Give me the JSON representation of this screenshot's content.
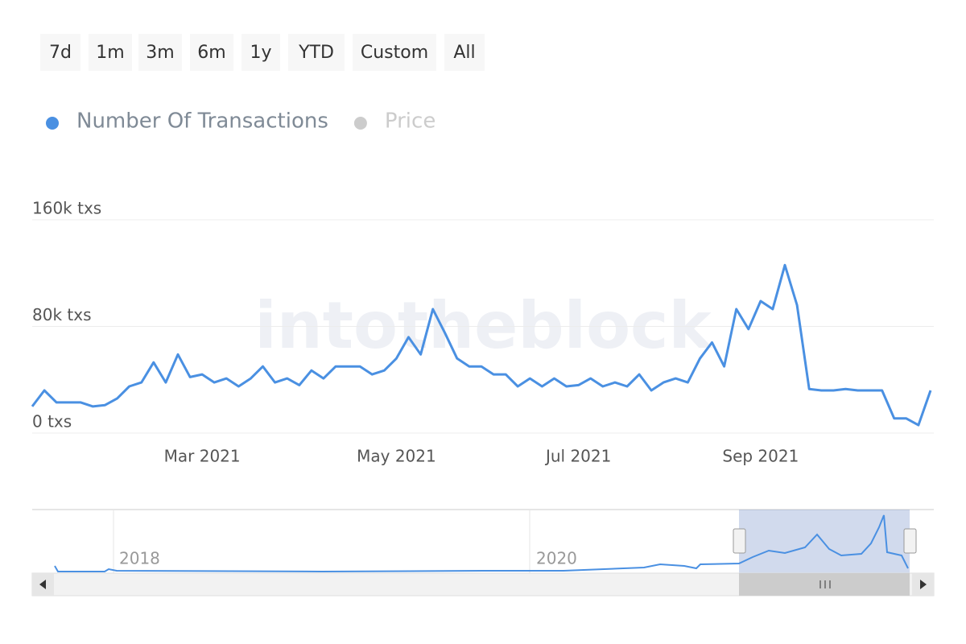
{
  "chart_data": {
    "type": "line",
    "range_buttons": [
      "7d",
      "1m",
      "3m",
      "6m",
      "1y",
      "YTD",
      "Custom",
      "All"
    ],
    "watermark": "intotheblock",
    "categories": [
      null,
      null,
      null,
      null,
      null,
      null,
      null,
      null,
      null,
      null,
      null,
      null,
      null,
      null,
      "Mar 2021",
      null,
      null,
      null,
      null,
      null,
      null,
      null,
      null,
      null,
      null,
      null,
      null,
      null,
      null,
      null,
      "May 2021",
      null,
      null,
      null,
      null,
      null,
      null,
      null,
      null,
      null,
      null,
      null,
      null,
      null,
      null,
      "Jul 2021",
      null,
      null,
      null,
      null,
      null,
      null,
      null,
      null,
      null,
      null,
      null,
      null,
      null,
      null,
      "Sep 2021",
      null,
      null,
      null,
      null,
      null,
      null,
      null,
      null,
      null,
      null,
      null,
      null,
      null,
      null
    ],
    "series": [
      {
        "name": "Number Of Transactions",
        "color": "#4a90e2",
        "values": [
          20000,
          32000,
          23000,
          23000,
          23000,
          20000,
          21000,
          26000,
          35000,
          38000,
          53000,
          38000,
          59000,
          42000,
          44000,
          38000,
          41000,
          35000,
          41000,
          50000,
          38000,
          41000,
          36000,
          47000,
          41000,
          50000,
          50000,
          50000,
          44000,
          47000,
          56000,
          72000,
          59000,
          93000,
          75000,
          56000,
          50000,
          50000,
          44000,
          44000,
          35000,
          41000,
          35000,
          41000,
          35000,
          36000,
          41000,
          35000,
          38000,
          35000,
          44000,
          32000,
          38000,
          41000,
          38000,
          56000,
          68000,
          50000,
          93000,
          78000,
          99000,
          93000,
          126000,
          96000,
          33000,
          32000,
          32000,
          33000,
          32000,
          32000,
          32000,
          11000,
          11000,
          6000,
          32000
        ]
      },
      {
        "name": "Price",
        "color": "#cccccc",
        "visible": false
      }
    ],
    "ylim": [
      0,
      160000
    ],
    "yticks": [
      {
        "value": 0,
        "label": "0 txs"
      },
      {
        "value": 80000,
        "label": "80k txs"
      },
      {
        "value": 160000,
        "label": "160k txs"
      }
    ],
    "grid": true,
    "navigator_labels": [
      "2018",
      "2020"
    ]
  }
}
